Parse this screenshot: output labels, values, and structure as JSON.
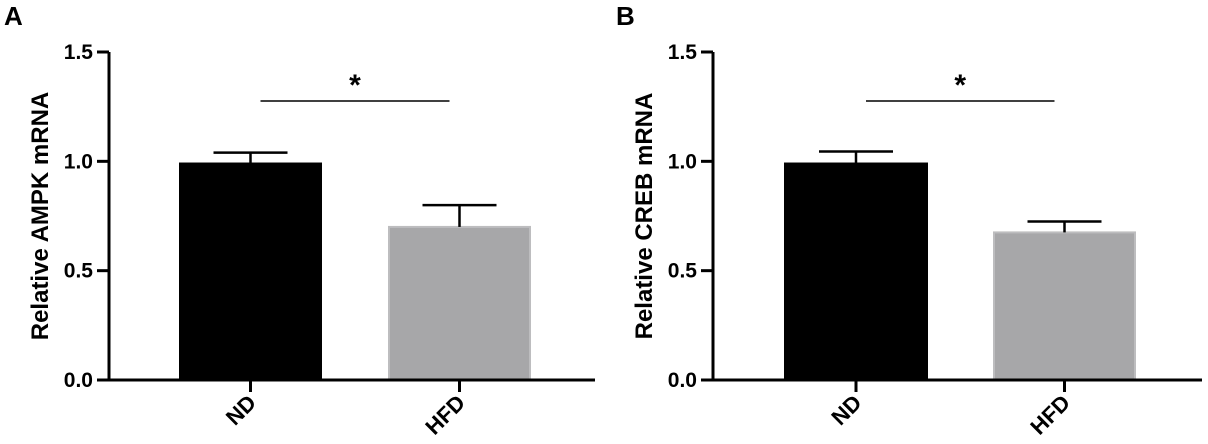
{
  "chart_data": [
    {
      "type": "bar",
      "panel": "A",
      "categories": [
        "ND",
        "HFD"
      ],
      "values": [
        0.99,
        0.7
      ],
      "errors": [
        0.05,
        0.1
      ],
      "colors": [
        "#000000",
        "#a7a7a9"
      ],
      "ylabel": "Relative AMPK mRNA",
      "ylim": [
        0,
        1.5
      ],
      "yticks": [
        "0.0",
        "0.5",
        "1.0",
        "1.5"
      ],
      "significance": "*"
    },
    {
      "type": "bar",
      "panel": "B",
      "categories": [
        "ND",
        "HFD"
      ],
      "values": [
        0.99,
        0.675
      ],
      "errors": [
        0.055,
        0.05
      ],
      "colors": [
        "#000000",
        "#a7a7a9"
      ],
      "ylabel": "Relative CREB mRNA",
      "ylim": [
        0,
        1.5
      ],
      "yticks": [
        "0.0",
        "0.5",
        "1.0",
        "1.5"
      ],
      "significance": "*"
    }
  ]
}
